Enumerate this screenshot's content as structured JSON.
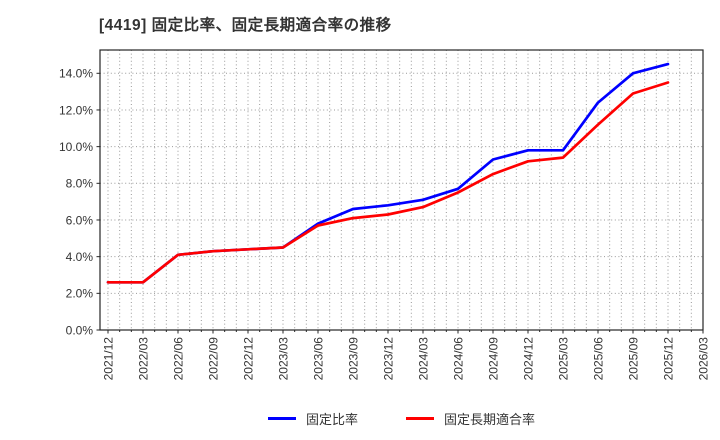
{
  "title": "[4419]  固定比率、固定長期適合率の推移",
  "chart_data": {
    "type": "line",
    "title": "[4419]  固定比率、固定長期適合率の推移",
    "x_labels": [
      "2021/12",
      "2022/03",
      "2022/06",
      "2022/09",
      "2022/12",
      "2023/03",
      "2023/06",
      "2023/09",
      "2023/12",
      "2024/03",
      "2024/06",
      "2024/09",
      "2024/12",
      "2025/03",
      "2025/06",
      "2025/09",
      "2025/12",
      "2026/03"
    ],
    "series": [
      {
        "name": "固定比率",
        "color": "#0000ff",
        "values": [
          2.6,
          2.6,
          4.1,
          4.3,
          4.4,
          4.5,
          5.8,
          6.6,
          6.8,
          7.1,
          7.7,
          9.3,
          9.8,
          9.8,
          12.4,
          14.0,
          14.5
        ]
      },
      {
        "name": "固定長期適合率",
        "color": "#ff0000",
        "values": [
          2.6,
          2.6,
          4.1,
          4.3,
          4.4,
          4.5,
          5.7,
          6.1,
          6.3,
          6.7,
          7.5,
          8.5,
          9.2,
          9.4,
          11.2,
          12.9,
          13.5
        ]
      }
    ],
    "ylabel": "",
    "xlabel": "",
    "yticks_labels": [
      "0.0%",
      "2.0%",
      "4.0%",
      "6.0%",
      "8.0%",
      "10.0%",
      "12.0%",
      "14.0%"
    ],
    "ytick_values": [
      0,
      2,
      4,
      6,
      8,
      10,
      12,
      14
    ],
    "ylim": [
      0,
      15.27
    ],
    "grid": "dotted, horizontal at 2% steps, vertical monthly minors",
    "legend_position": "bottom-center",
    "axis_color": "#262626",
    "grid_color": "#999999",
    "label_color": "#333333"
  }
}
